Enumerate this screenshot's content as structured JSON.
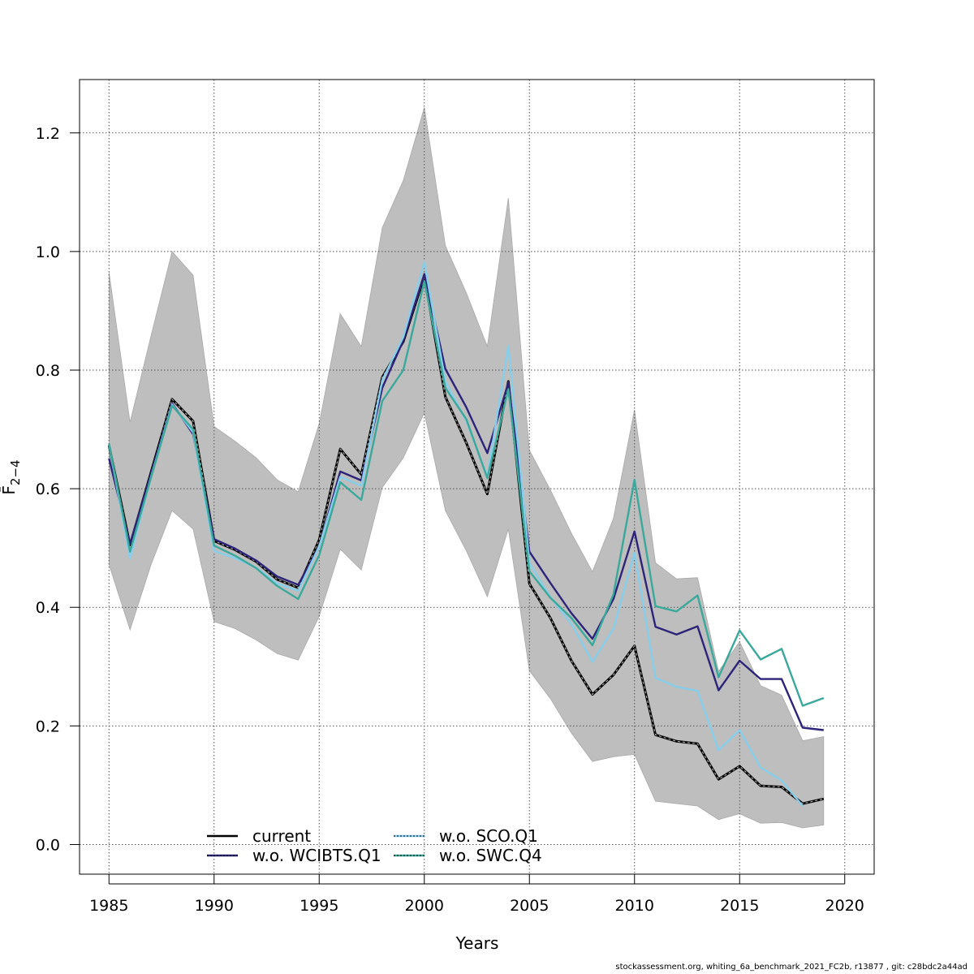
{
  "chart_data": {
    "type": "line",
    "xlabel": "Years",
    "ylabel": "F̄",
    "ylabel_subscript": "2−4",
    "xlim": [
      1983.6,
      2021.4
    ],
    "ylim": [
      -0.05,
      1.29
    ],
    "xticks": [
      "1985",
      "1990",
      "1995",
      "2000",
      "2005",
      "2010",
      "2015",
      "2020"
    ],
    "yticks": [
      "0.0",
      "0.2",
      "0.4",
      "0.6",
      "0.8",
      "1.0",
      "1.2"
    ],
    "grid": true,
    "legend_position": "bottom-left",
    "x": [
      1985,
      1986,
      1987,
      1988,
      1989,
      1990,
      1991,
      1992,
      1993,
      1994,
      1995,
      1996,
      1997,
      1998,
      1999,
      2000,
      2001,
      2002,
      2003,
      2004,
      2005,
      2006,
      2007,
      2008,
      2009,
      2010,
      2011,
      2012,
      2013,
      2014,
      2015,
      2016,
      2017,
      2018,
      2019
    ],
    "band": {
      "color": "#bebebe",
      "upper": [
        0.965,
        0.712,
        0.858,
        1.0,
        0.96,
        0.705,
        0.68,
        0.652,
        0.615,
        0.595,
        0.71,
        0.895,
        0.84,
        1.04,
        1.12,
        1.243,
        1.01,
        0.93,
        0.84,
        1.09,
        0.665,
        0.598,
        0.525,
        0.46,
        0.55,
        0.733,
        0.475,
        0.448,
        0.45,
        0.292,
        0.342,
        0.268,
        0.252,
        0.175,
        0.182
      ],
      "lower": [
        0.472,
        0.362,
        0.472,
        0.563,
        0.532,
        0.376,
        0.364,
        0.345,
        0.322,
        0.311,
        0.385,
        0.498,
        0.463,
        0.602,
        0.652,
        0.728,
        0.563,
        0.495,
        0.418,
        0.532,
        0.293,
        0.246,
        0.188,
        0.14,
        0.148,
        0.152,
        0.073,
        0.069,
        0.065,
        0.042,
        0.052,
        0.036,
        0.037,
        0.028,
        0.033
      ]
    },
    "series": [
      {
        "name": "current",
        "color": "#000000",
        "values": [
          0.673,
          0.505,
          0.628,
          0.751,
          0.714,
          0.512,
          0.497,
          0.477,
          0.447,
          0.433,
          0.514,
          0.667,
          0.624,
          0.788,
          0.848,
          0.958,
          0.755,
          0.677,
          0.591,
          0.781,
          0.44,
          0.382,
          0.31,
          0.253,
          0.286,
          0.335,
          0.185,
          0.174,
          0.17,
          0.11,
          0.132,
          0.099,
          0.097,
          0.069,
          0.077
        ]
      },
      {
        "name": "w.o. WCIBTS.Q1",
        "color": "#2d2479",
        "values": [
          0.651,
          0.507,
          0.626,
          0.744,
          0.692,
          0.515,
          0.499,
          0.479,
          0.452,
          0.438,
          0.503,
          0.629,
          0.614,
          0.77,
          0.85,
          0.962,
          0.802,
          0.737,
          0.66,
          0.779,
          0.494,
          0.441,
          0.39,
          0.347,
          0.414,
          0.528,
          0.367,
          0.354,
          0.368,
          0.26,
          0.31,
          0.279,
          0.279,
          0.197,
          0.193
        ]
      },
      {
        "name": "w.o. SCO.Q1",
        "color": "#87ceeb",
        "values": [
          0.675,
          0.482,
          0.62,
          0.742,
          0.695,
          0.495,
          0.483,
          0.467,
          0.44,
          0.428,
          0.503,
          0.62,
          0.605,
          0.783,
          0.856,
          0.982,
          0.781,
          0.714,
          0.62,
          0.841,
          0.475,
          0.417,
          0.372,
          0.308,
          0.364,
          0.492,
          0.281,
          0.266,
          0.259,
          0.159,
          0.193,
          0.13,
          0.108,
          0.065,
          null
        ]
      },
      {
        "name": "w.o. SWC.Q4",
        "color": "#3aa89a",
        "values": [
          0.676,
          0.494,
          0.619,
          0.74,
          0.7,
          0.504,
          0.487,
          0.466,
          0.436,
          0.414,
          0.488,
          0.611,
          0.581,
          0.748,
          0.8,
          0.95,
          0.77,
          0.717,
          0.618,
          0.768,
          0.461,
          0.416,
          0.382,
          0.336,
          0.422,
          0.615,
          0.402,
          0.393,
          0.42,
          0.282,
          0.361,
          0.312,
          0.33,
          0.234,
          0.247
        ]
      }
    ]
  },
  "footer": "stockassessment.org, whiting_6a_benchmark_2021_FC2b, r13877 , git: c28bdc2a44ad"
}
